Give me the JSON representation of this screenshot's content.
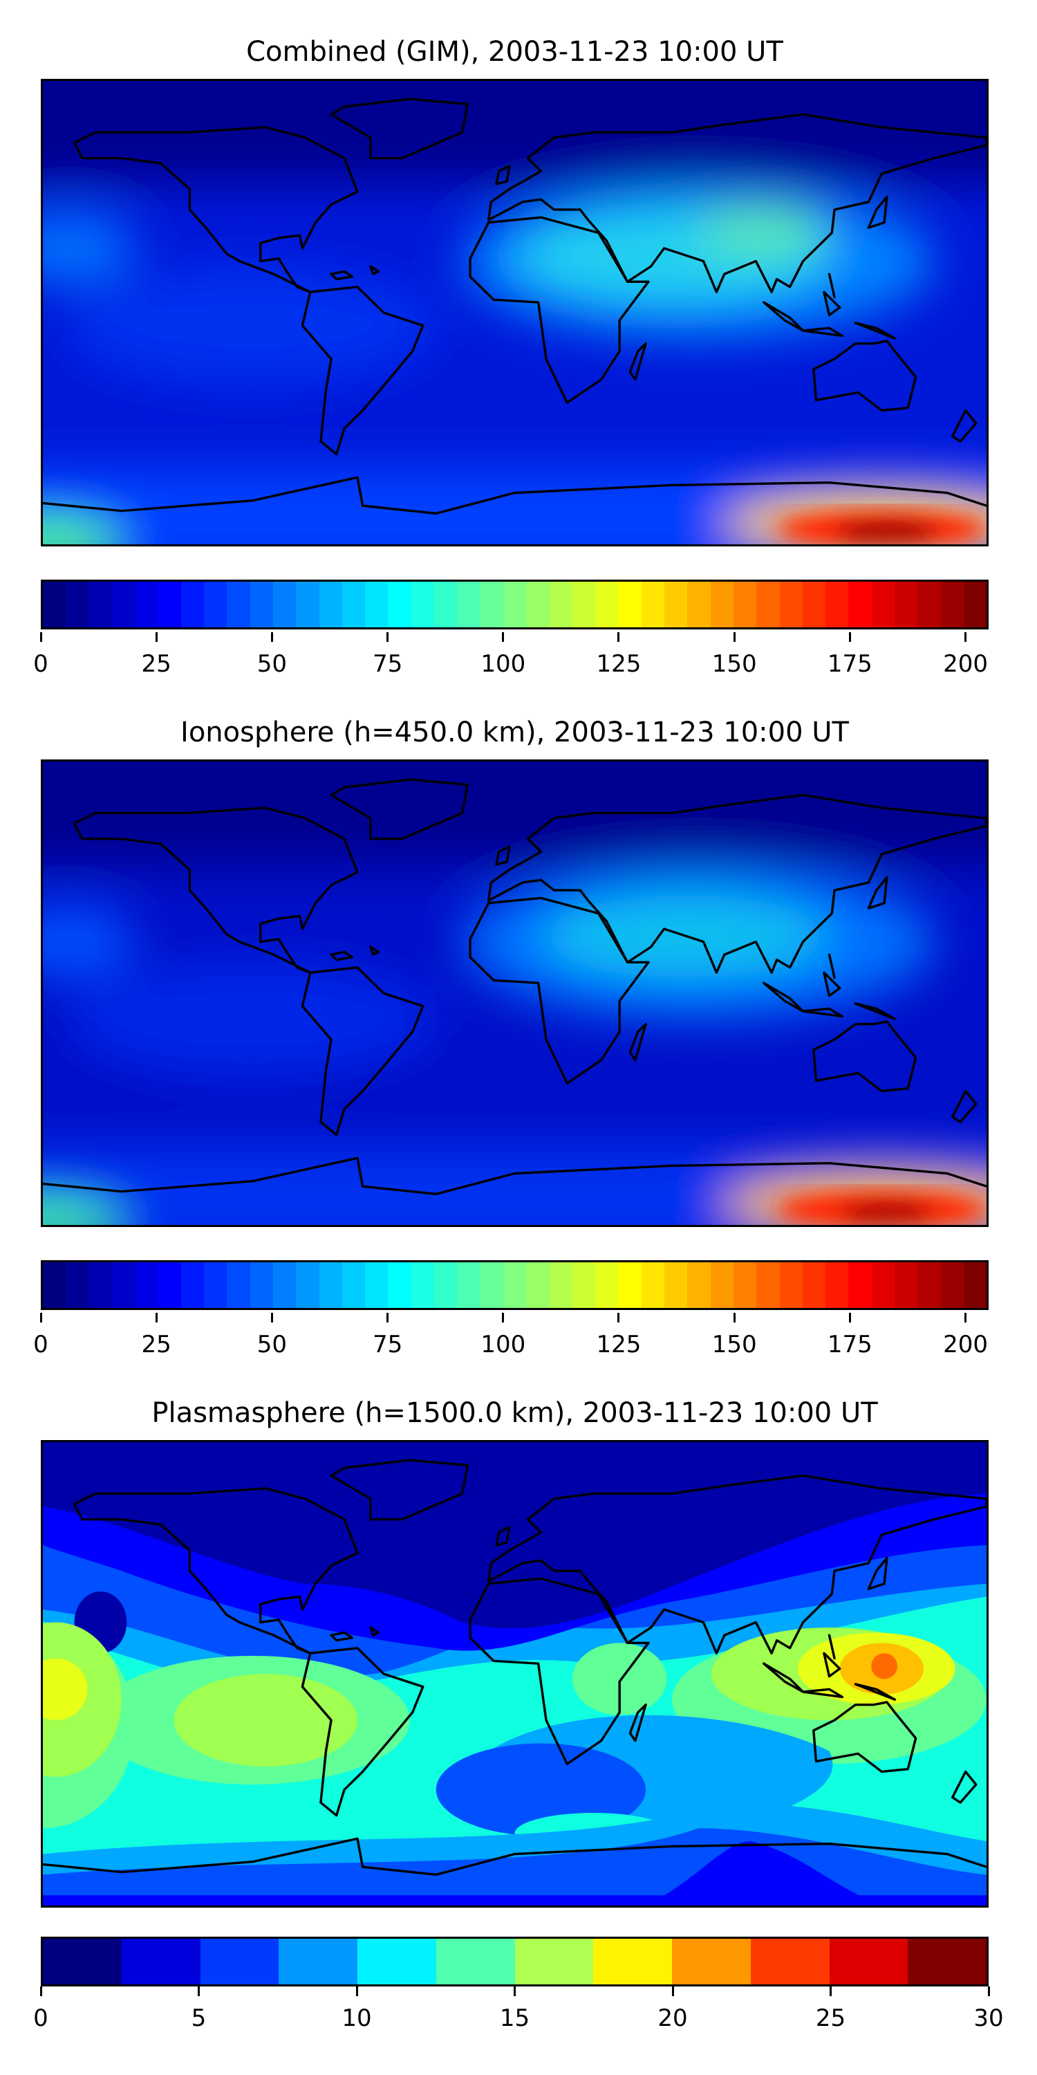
{
  "chart_data": [
    {
      "type": "heatmap",
      "title": "Combined (GIM), 2003-11-23 10:00 UT",
      "projection": "plate carree, global",
      "colormap": "jet",
      "levels": {
        "min": 0,
        "max": 205,
        "step": 5
      },
      "colorbar_ticks": [
        0,
        25,
        50,
        75,
        100,
        125,
        150,
        175,
        200
      ],
      "colorbar_tick_labels": [
        "0",
        "25",
        "50",
        "75",
        "100",
        "125",
        "150",
        "175",
        "200"
      ],
      "features": "low values in the north; enhanced band over Africa, Indian Ocean and SE Asia (~75-110); maximum ~200 near the Antarctic coast, south of Australia/New Zealand"
    },
    {
      "type": "heatmap",
      "title": "Ionosphere  (h=450.0 km), 2003-11-23 10:00 UT",
      "projection": "plate carree, global",
      "colormap": "jet",
      "levels": {
        "min": 0,
        "max": 205,
        "step": 5
      },
      "colorbar_ticks": [
        0,
        25,
        50,
        75,
        100,
        125,
        150,
        175,
        200
      ],
      "colorbar_tick_labels": [
        "0",
        "25",
        "50",
        "75",
        "100",
        "125",
        "150",
        "175",
        "200"
      ],
      "features": "similar to the combined map but a little lower; maximum ~190 near the Antarctic coast"
    },
    {
      "type": "heatmap",
      "title": "Plasmasphere (h=1500.0 km), 2003-11-23 10:00 UT",
      "projection": "plate carree, global",
      "colormap": "jet",
      "levels": {
        "min": 0,
        "max": 30,
        "step": 2.5
      },
      "colorbar_ticks": [
        0,
        5,
        10,
        15,
        20,
        25,
        30
      ],
      "colorbar_tick_labels": [
        "0",
        "5",
        "10",
        "15",
        "20",
        "25",
        "30"
      ],
      "features": "low values (0-5) in the northern mid/high latitudes; 10-17.5 across the tropics; maximum ~22.5-25 near New Guinea; ~17.5-20 in the central Pacific"
    }
  ]
}
